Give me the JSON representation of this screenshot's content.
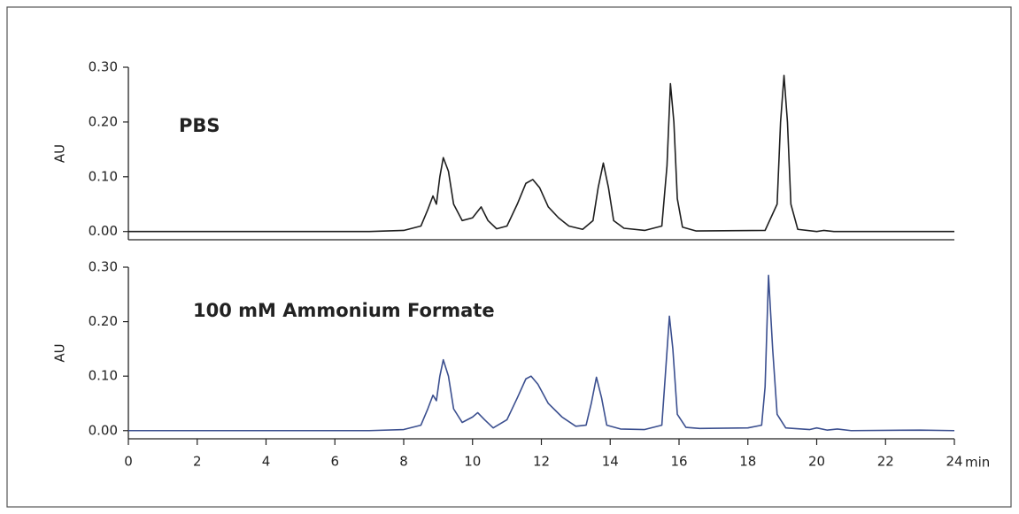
{
  "chart_data": [
    {
      "type": "line",
      "label": "PBS",
      "ylabel": "AU",
      "color": "#1e1e1e",
      "xlim": [
        0,
        24
      ],
      "ylim": [
        -0.015,
        0.3
      ],
      "yticks": [
        {
          "value": 0,
          "label": "0.00"
        },
        {
          "value": 0.1,
          "label": "0.10"
        },
        {
          "value": 0.2,
          "label": "0.20"
        },
        {
          "value": 0.3,
          "label": "0.30"
        }
      ],
      "x": [
        0,
        7,
        8,
        8.5,
        8.7,
        8.85,
        8.95,
        9.05,
        9.15,
        9.3,
        9.45,
        9.7,
        10.0,
        10.25,
        10.45,
        10.7,
        11.0,
        11.3,
        11.55,
        11.75,
        11.95,
        12.2,
        12.5,
        12.8,
        13.2,
        13.5,
        13.65,
        13.8,
        13.95,
        14.1,
        14.4,
        15.0,
        15.5,
        15.65,
        15.75,
        15.85,
        15.95,
        16.1,
        16.5,
        18.5,
        18.85,
        18.95,
        19.05,
        19.15,
        19.25,
        19.45,
        20.0,
        20.2,
        20.5,
        24
      ],
      "values": [
        0,
        0,
        0.002,
        0.01,
        0.04,
        0.065,
        0.05,
        0.1,
        0.135,
        0.11,
        0.05,
        0.02,
        0.025,
        0.045,
        0.02,
        0.005,
        0.01,
        0.05,
        0.088,
        0.095,
        0.08,
        0.045,
        0.025,
        0.01,
        0.004,
        0.02,
        0.08,
        0.125,
        0.08,
        0.02,
        0.006,
        0.002,
        0.01,
        0.12,
        0.27,
        0.2,
        0.06,
        0.008,
        0.001,
        0.002,
        0.05,
        0.2,
        0.285,
        0.2,
        0.05,
        0.004,
        0,
        0.002,
        0,
        0
      ]
    },
    {
      "type": "line",
      "label": "100 mM Ammonium Formate",
      "ylabel": "AU",
      "xlabel": "min",
      "color": "#3b4f8f",
      "xlim": [
        0,
        24
      ],
      "ylim": [
        -0.015,
        0.3
      ],
      "xticks": [
        0,
        2,
        4,
        6,
        8,
        10,
        12,
        14,
        16,
        18,
        20,
        22,
        24
      ],
      "yticks": [
        {
          "value": 0,
          "label": "0.00"
        },
        {
          "value": 0.1,
          "label": "0.10"
        },
        {
          "value": 0.2,
          "label": "0.20"
        },
        {
          "value": 0.3,
          "label": "0.30"
        }
      ],
      "x": [
        0,
        7,
        8,
        8.5,
        8.7,
        8.85,
        8.95,
        9.05,
        9.15,
        9.3,
        9.45,
        9.7,
        10.0,
        10.15,
        10.35,
        10.6,
        11.0,
        11.3,
        11.55,
        11.7,
        11.9,
        12.2,
        12.6,
        13.0,
        13.3,
        13.45,
        13.6,
        13.75,
        13.9,
        14.3,
        15.0,
        15.5,
        15.6,
        15.72,
        15.82,
        15.95,
        16.2,
        16.6,
        18.0,
        18.4,
        18.5,
        18.6,
        18.72,
        18.85,
        19.1,
        19.8,
        20.0,
        20.3,
        20.6,
        21,
        23,
        24
      ],
      "values": [
        0,
        0,
        0.002,
        0.01,
        0.04,
        0.065,
        0.055,
        0.1,
        0.13,
        0.1,
        0.04,
        0.015,
        0.025,
        0.033,
        0.02,
        0.005,
        0.02,
        0.06,
        0.095,
        0.1,
        0.085,
        0.05,
        0.025,
        0.008,
        0.01,
        0.05,
        0.098,
        0.06,
        0.01,
        0.003,
        0.002,
        0.01,
        0.1,
        0.21,
        0.15,
        0.03,
        0.006,
        0.004,
        0.005,
        0.01,
        0.08,
        0.285,
        0.15,
        0.03,
        0.005,
        0.002,
        0.005,
        0.001,
        0.003,
        0,
        0.001,
        0
      ]
    }
  ]
}
